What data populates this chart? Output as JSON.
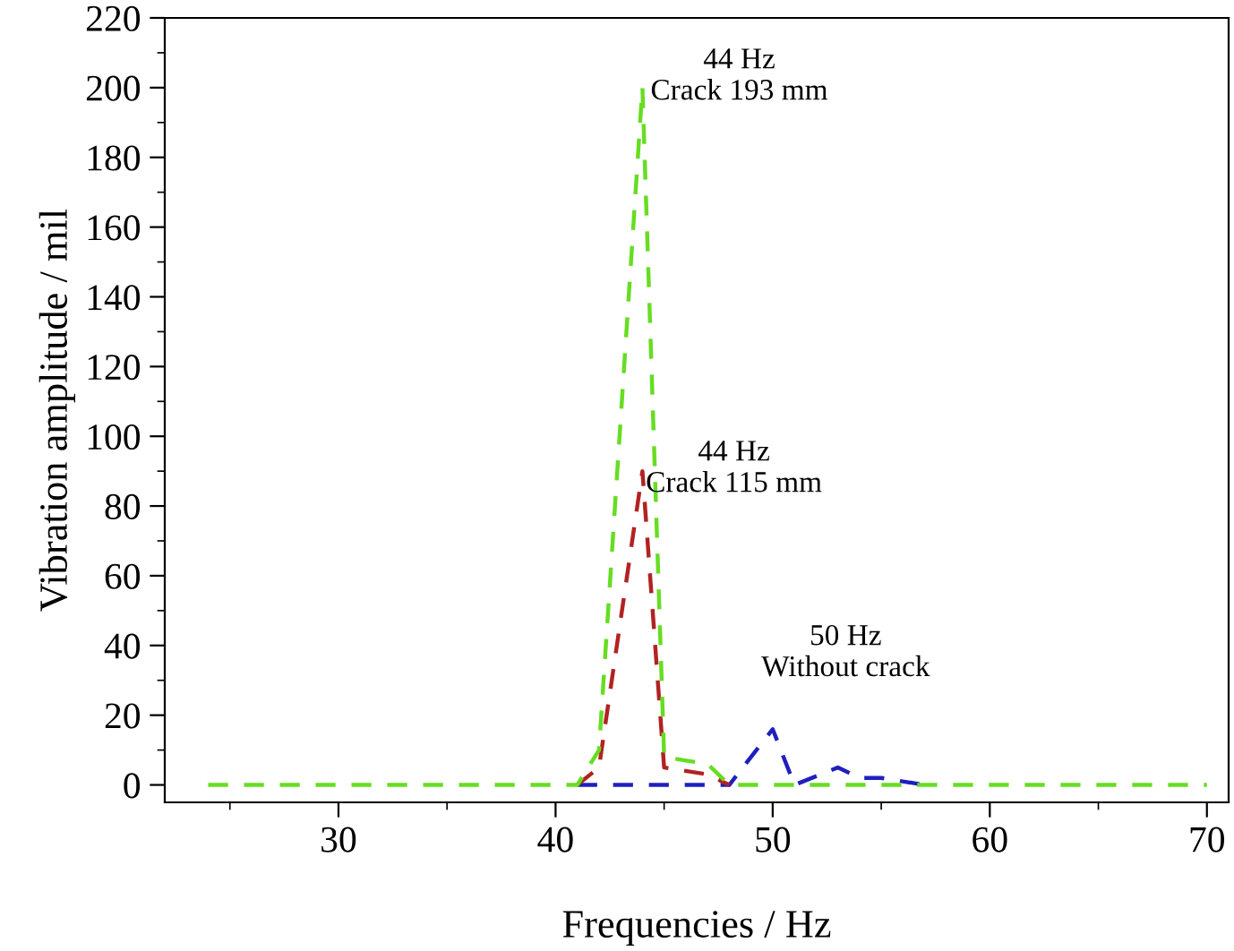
{
  "chart_data": {
    "type": "line",
    "xlabel": "Frequencies / Hz",
    "ylabel": "Vibration amplitude / mil",
    "xlim": [
      22,
      71
    ],
    "ylim": [
      -5,
      220
    ],
    "xticks": [
      30,
      40,
      50,
      60,
      70
    ],
    "yticks": [
      0,
      20,
      40,
      60,
      80,
      100,
      120,
      140,
      160,
      180,
      200,
      220
    ],
    "line_style": "dashed",
    "grid": false,
    "series": [
      {
        "color": "#1f1fbf",
        "x": [
          41,
          48,
          50,
          51,
          53,
          54,
          55,
          57
        ],
        "values": [
          0,
          0,
          16,
          0,
          5,
          2,
          2,
          0
        ]
      },
      {
        "color": "#b22222",
        "x": [
          41,
          42,
          44,
          45,
          47,
          48
        ],
        "values": [
          0,
          5,
          90,
          5,
          3,
          0
        ]
      },
      {
        "color": "#66dd22",
        "x": [
          24,
          41,
          42,
          44,
          45,
          47,
          48,
          70
        ],
        "values": [
          0,
          0,
          10,
          200,
          8,
          6,
          0,
          0
        ]
      }
    ],
    "annotations": [
      "44 Hz\nCrack 193 mm",
      "44 Hz\nCrack 115 mm",
      "50 Hz\nWithout crack"
    ]
  }
}
